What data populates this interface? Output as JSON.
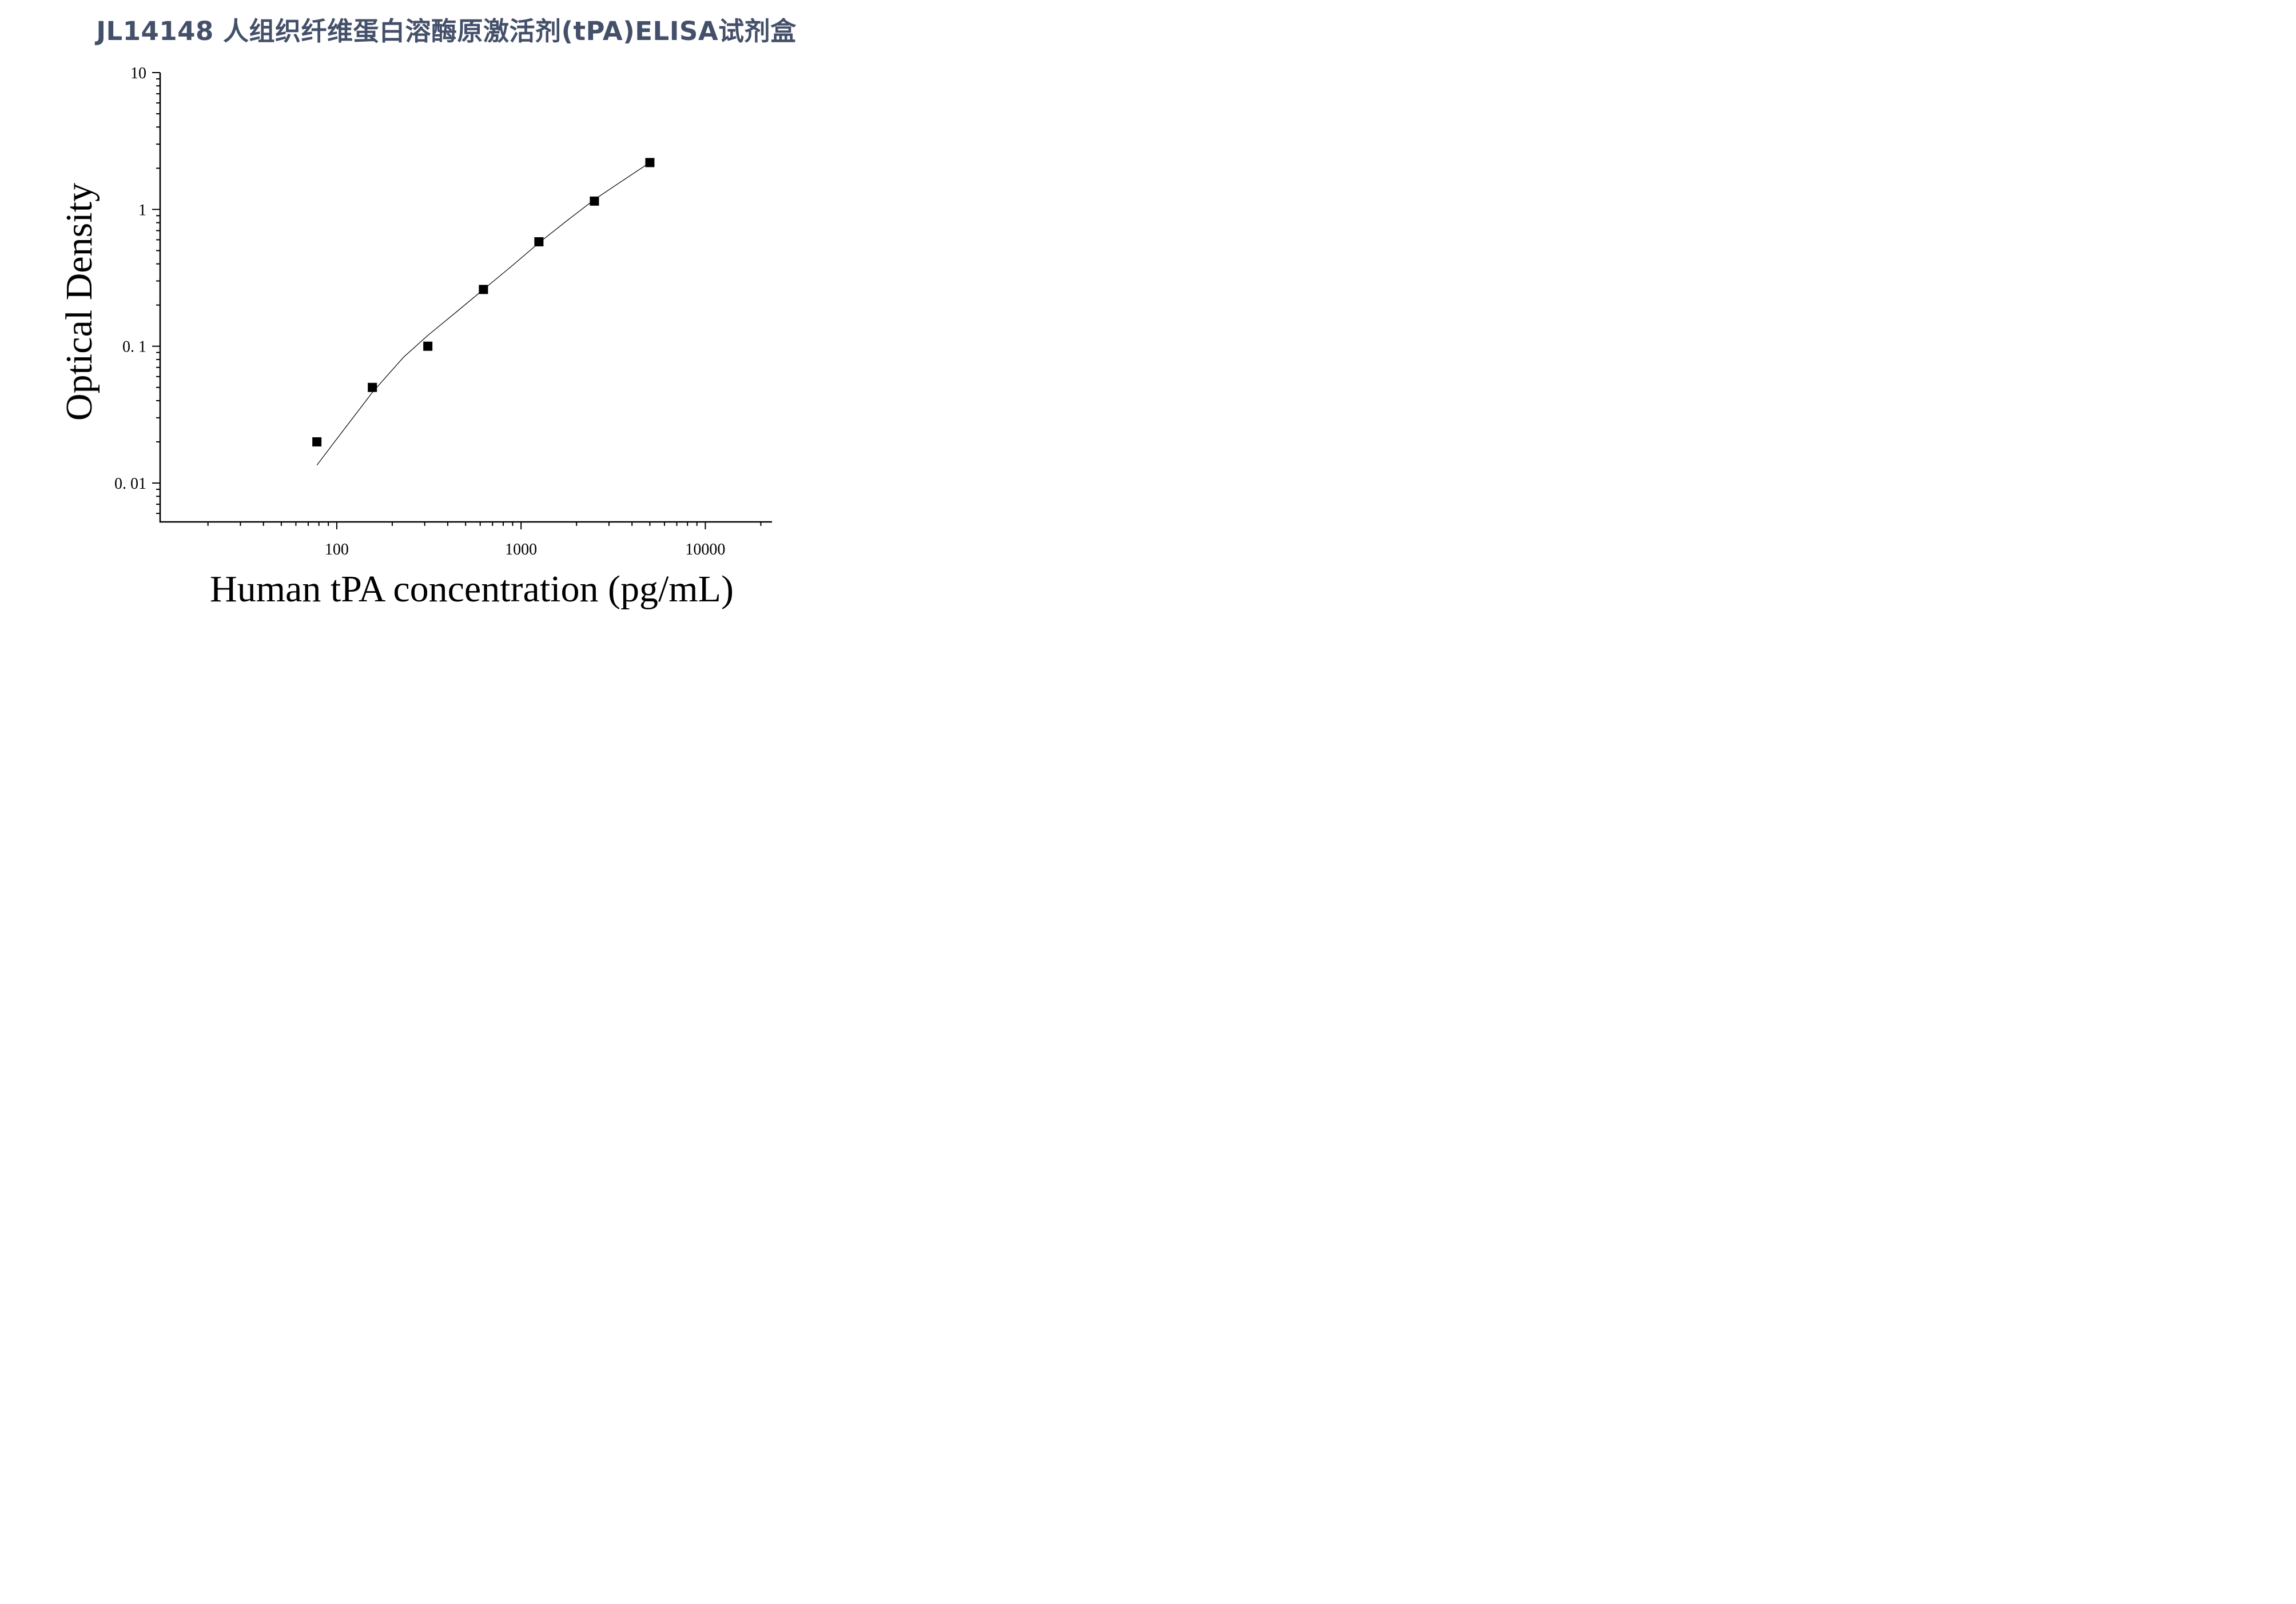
{
  "title": "JL14148 人组织纤维蛋白溶酶原激活剂(tPA)ELISA试剂盒",
  "chart_data": {
    "type": "scatter",
    "xlabel": "Human tPA concentration (pg/mL)",
    "ylabel": "Optical Density",
    "x_scale": "log",
    "y_scale": "log",
    "xlim": [
      11,
      23000
    ],
    "ylim": [
      0.0052,
      10
    ],
    "x_ticks": [
      {
        "value": 100,
        "label": "100"
      },
      {
        "value": 1000,
        "label": "1000"
      },
      {
        "value": 10000,
        "label": "10000"
      }
    ],
    "y_ticks": [
      {
        "value": 10,
        "label": "10"
      },
      {
        "value": 1,
        "label": "1"
      },
      {
        "value": 0.1,
        "label": "0. 1"
      },
      {
        "value": 0.01,
        "label": "0. 01"
      }
    ],
    "grid": false,
    "series": [
      {
        "type": "scatter",
        "marker": "square",
        "x": [
          78,
          156,
          312,
          625,
          1250,
          2500,
          5000
        ],
        "y": [
          0.02,
          0.05,
          0.1,
          0.26,
          0.58,
          1.15,
          2.2
        ]
      },
      {
        "type": "line",
        "x": [
          78,
          100,
          156,
          230,
          312,
          450,
          625,
          900,
          1250,
          1800,
          2500,
          3500,
          5000
        ],
        "y": [
          0.0135,
          0.021,
          0.046,
          0.083,
          0.12,
          0.18,
          0.26,
          0.39,
          0.57,
          0.84,
          1.18,
          1.6,
          2.2
        ]
      }
    ]
  }
}
